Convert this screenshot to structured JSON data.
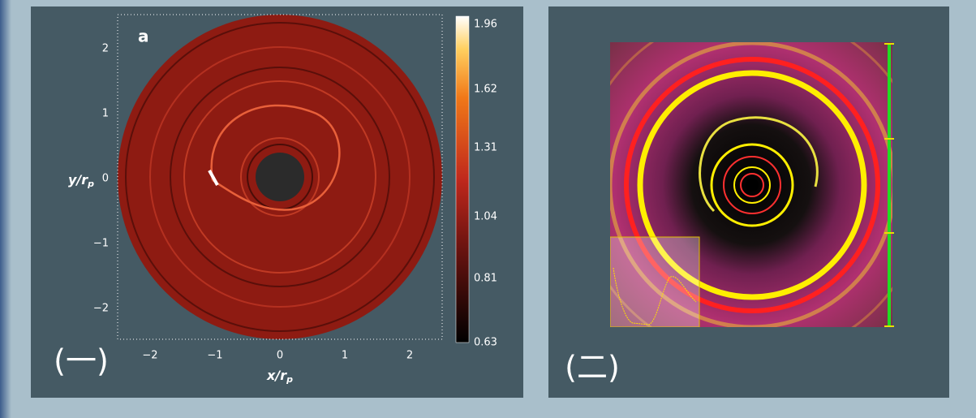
{
  "left_panel": {
    "panel_label": "a",
    "y_ticks": [
      "2",
      "1",
      "0",
      "−1",
      "−2"
    ],
    "x_ticks": [
      "−2",
      "−1",
      "0",
      "1",
      "2"
    ],
    "x_label": {
      "main": "x/r",
      "sub": "p"
    },
    "y_label": {
      "main": "y/r",
      "sub": "p"
    },
    "colorbar_ticks": [
      "1.96",
      "1.62",
      "1.31",
      "1.04",
      "0.81",
      "0.63"
    ],
    "caption": "(一)"
  },
  "right_panel": {
    "caption": "(二)"
  }
}
